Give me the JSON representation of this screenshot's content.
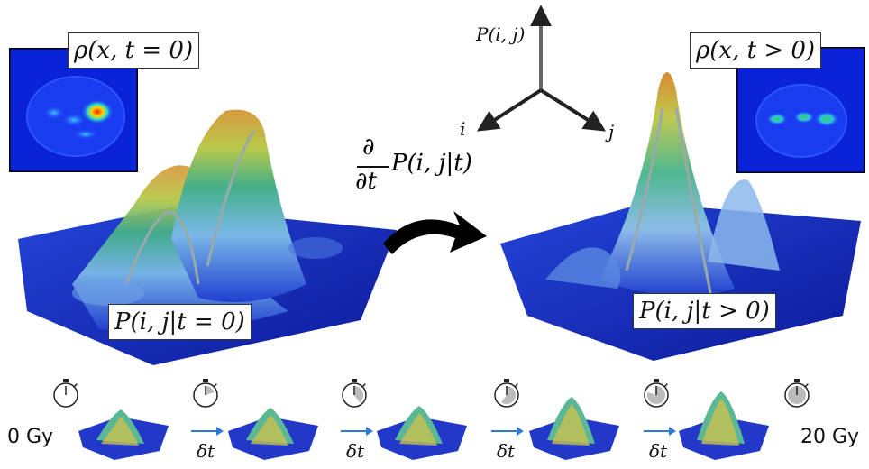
{
  "top_left": {
    "rho_label": "ρ(x, t = 0)",
    "p_label": "P(i, j|t = 0)"
  },
  "top_right": {
    "rho_label": "ρ(x, t > 0)",
    "p_label": "P(i, j|t > 0)"
  },
  "axes": {
    "z": "P(i, j)",
    "i": "i",
    "j": "j"
  },
  "derivative": {
    "numerator": "∂",
    "denominator": "∂t",
    "term": "P(i, j|t)"
  },
  "timeline": {
    "start": "0 Gy",
    "end": "20 Gy",
    "step": "δt",
    "stopwatch_fractions": [
      0,
      0.2,
      0.4,
      0.6,
      0.8,
      1.0
    ]
  },
  "colors": {
    "base": "#1a2fb0",
    "heatmap_bg": "#0a1fd6",
    "arrow": "#2b7bd8"
  }
}
